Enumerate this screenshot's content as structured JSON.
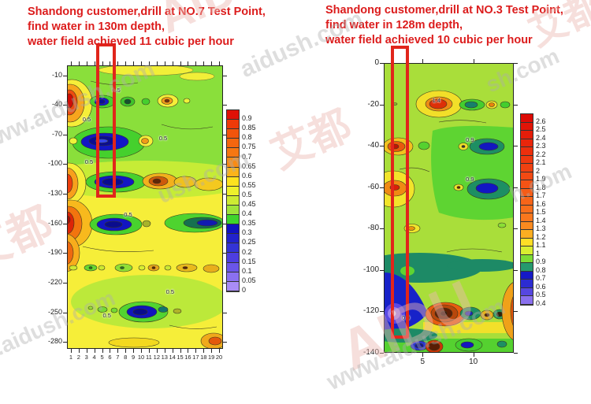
{
  "watermarks": [
    {
      "text": "AIDU艾都"
    },
    {
      "text": "www.aidush.com"
    },
    {
      "text": "aidush.com"
    },
    {
      "text": "艾都"
    },
    {
      "text": "艾都"
    },
    {
      "text": "ush.com"
    },
    {
      "text": "AIDU"
    },
    {
      "text": "www.aidush.com"
    },
    {
      "text": "sh.com"
    },
    {
      "text": "艾都"
    },
    {
      "text": "www.aidush.com"
    },
    {
      "text": "h.com"
    }
  ],
  "chart_data": [
    {
      "type": "heatmap",
      "panel": "left",
      "annotation_lines": [
        "Shandong customer,drill at NO.7 Test Point,",
        "find water in 130m depth,",
        "water field achieved 11 cubic per hour"
      ],
      "x_ticks": [
        1,
        2,
        3,
        4,
        5,
        6,
        7,
        8,
        9,
        10,
        11,
        12,
        13,
        14,
        15,
        16,
        17,
        18,
        19,
        20
      ],
      "y_ticks": [
        -10,
        -40,
        -70,
        -100,
        -130,
        -160,
        -190,
        -220,
        -250,
        -280
      ],
      "x_range": [
        0.5,
        20.5
      ],
      "depth_range": [
        0,
        -287
      ],
      "grid": false,
      "legend_position": "right",
      "colorbar": {
        "labels": [
          "0.9",
          "0.85",
          "0.8",
          "0.75",
          "0.7",
          "0.65",
          "0.6",
          "0.55",
          "0.5",
          "0.45",
          "0.4",
          "0.35",
          "0.3",
          "0.25",
          "0.2",
          "0.15",
          "0.1",
          "0.05",
          "0"
        ],
        "colors": [
          "#e01106",
          "#ee3a09",
          "#f2540c",
          "#f4660f",
          "#f67712",
          "#f88b15",
          "#fbb31a",
          "#fde21f",
          "#eef02b",
          "#cdeb33",
          "#9fe43a",
          "#3fd42c",
          "#1111c2",
          "#2222cc",
          "#3333d6",
          "#4d3ee0",
          "#6a55e9",
          "#8a70f1",
          "#a98cf7"
        ]
      },
      "contour_labels": [
        {
          "station": 7.0,
          "depth": -25,
          "value": "0.5"
        },
        {
          "station": 3.2,
          "depth": -54,
          "value": "0.5"
        },
        {
          "station": 13.0,
          "depth": -73,
          "value": "0.5"
        },
        {
          "station": 3.5,
          "depth": -97,
          "value": "0.5"
        },
        {
          "station": 8.5,
          "depth": -151,
          "value": "0.5"
        },
        {
          "station": 13.9,
          "depth": -229,
          "value": "0.5"
        },
        {
          "station": 5.8,
          "depth": -253,
          "value": "0.5"
        }
      ],
      "highlight_box": {
        "station_from": 4.2,
        "station_to": 6.8,
        "depth_from": 0,
        "depth_to": -134,
        "meaning": "drill location NO.7 test point"
      },
      "anomalies": [
        {
          "station_range": [
            1,
            3
          ],
          "depth": -40,
          "type": "high resistivity (orange/red)"
        },
        {
          "station_range": [
            4,
            8
          ],
          "depth": -78,
          "type": "low resistivity water zone (dark blue)"
        },
        {
          "station_range": [
            3,
            7
          ],
          "depth": -118,
          "type": "low resistivity (dark blue)"
        },
        {
          "station_range": [
            12,
            15
          ],
          "depth": -118,
          "type": "high resistivity (orange/brown)"
        },
        {
          "station_range": [
            1,
            3
          ],
          "depth": -160,
          "type": "high resistivity (orange/red)"
        },
        {
          "station_range": [
            10,
            13
          ],
          "depth": -158,
          "type": "low resistivity (dark blue)"
        },
        {
          "station_range": [
            16,
            20
          ],
          "depth": -158,
          "type": "low resistivity (teal/blue)"
        },
        {
          "station_range": [
            10,
            13
          ],
          "depth": -248,
          "type": "low resistivity (dark blue)"
        }
      ]
    },
    {
      "type": "heatmap",
      "panel": "right",
      "annotation_lines": [
        "Shandong customer,drill at NO.3 Test Point,",
        "find water in 128m depth,",
        "water field achieved 10 cubic per hour"
      ],
      "x_ticks": [
        5,
        10
      ],
      "y_ticks": [
        0,
        -20,
        -40,
        -60,
        -80,
        -100,
        -120,
        -140
      ],
      "x_range": [
        1,
        14
      ],
      "depth_range": [
        0,
        -140
      ],
      "grid": false,
      "legend_position": "right",
      "colorbar": {
        "labels": [
          "2.6",
          "2.5",
          "2.4",
          "2.3",
          "2.2",
          "2.1",
          "2",
          "1.9",
          "1.8",
          "1.7",
          "1.6",
          "1.5",
          "1.4",
          "1.3",
          "1.2",
          "1.1",
          "1",
          "0.9",
          "0.8",
          "0.7",
          "0.6",
          "0.5",
          "0.4"
        ],
        "colors": [
          "#dd0b05",
          "#e11407",
          "#e51d09",
          "#e9260b",
          "#ec2f0d",
          "#ee380f",
          "#f04111",
          "#f24a13",
          "#f45315",
          "#f55c17",
          "#f66519",
          "#f76e1b",
          "#f9771d",
          "#fa8a1f",
          "#fcae22",
          "#fede26",
          "#d8ee30",
          "#7cdc35",
          "#26996e",
          "#1519c6",
          "#2c2cd2",
          "#5647e0",
          "#8a70ee"
        ]
      },
      "contour_labels": [
        {
          "station": 6.5,
          "depth": -18,
          "value": "1.4"
        },
        {
          "station": 9.8,
          "depth": -37,
          "value": "0.9"
        },
        {
          "station": 9.8,
          "depth": -56,
          "value": "0.9"
        },
        {
          "station": 3.5,
          "depth": -123,
          "value": "0.9"
        }
      ],
      "highlight_box": {
        "station_from": 1.87,
        "station_to": 3.65,
        "depth_from": 0,
        "depth_to": -133,
        "meaning": "drill location NO.3 test point"
      },
      "anomalies": [
        {
          "station_range": [
            5,
            8
          ],
          "depth": -20,
          "type": "high resistivity (red core in yellow)"
        },
        {
          "station_range": [
            1,
            2
          ],
          "depth": -40,
          "type": "high resistivity (orange/red)"
        },
        {
          "station_range": [
            10,
            12
          ],
          "depth": -40,
          "type": "low resistivity (teal/blue)"
        },
        {
          "station_range": [
            1,
            3
          ],
          "depth": -60,
          "type": "high resistivity (orange in yellow)"
        },
        {
          "station_range": [
            10,
            12
          ],
          "depth": -60,
          "type": "low resistivity (blue in green)"
        },
        {
          "station_range": [
            1,
            3
          ],
          "depth_range": [
            -95,
            -135
          ],
          "type": "low resistivity water zone (blue/purple)"
        },
        {
          "station_range": [
            5,
            7
          ],
          "depth": -120,
          "type": "high resistivity (dark red/brown)"
        },
        {
          "station_range": [
            13,
            14
          ],
          "depth": -120,
          "type": "high resistivity (orange at edge)"
        }
      ]
    }
  ]
}
